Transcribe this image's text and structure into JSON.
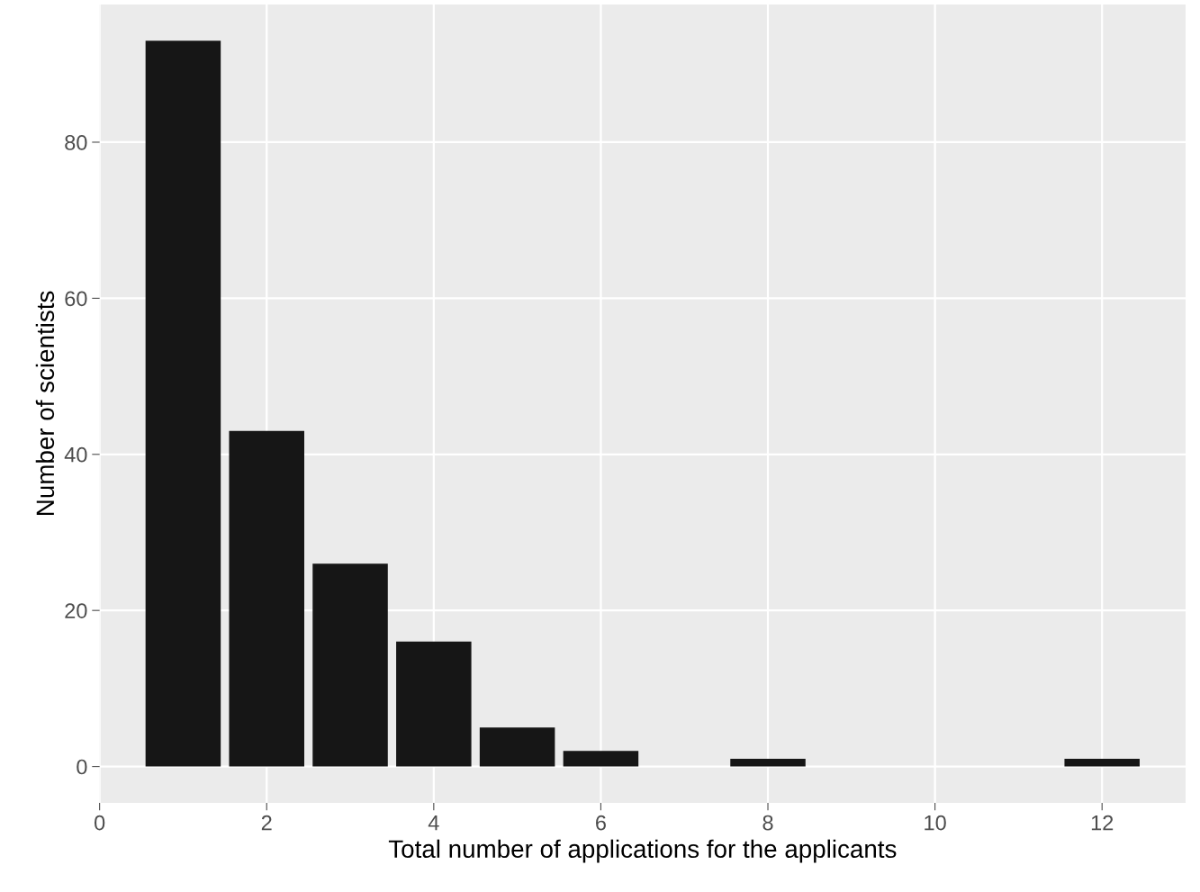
{
  "chart_data": {
    "type": "bar",
    "xlabel": "Total number of applications for the applicants",
    "ylabel": "Number of scientists",
    "x": [
      1,
      2,
      3,
      4,
      5,
      6,
      8,
      12
    ],
    "values": [
      93,
      43,
      26,
      16,
      5,
      2,
      1,
      1
    ],
    "color": "#161616",
    "xlim": [
      0,
      13
    ],
    "xticks": [
      0,
      2,
      4,
      6,
      8,
      10,
      12
    ],
    "ylim": [
      -4.65,
      97.65
    ],
    "yticks": [
      0,
      20,
      40,
      60,
      80
    ],
    "grid": true
  }
}
